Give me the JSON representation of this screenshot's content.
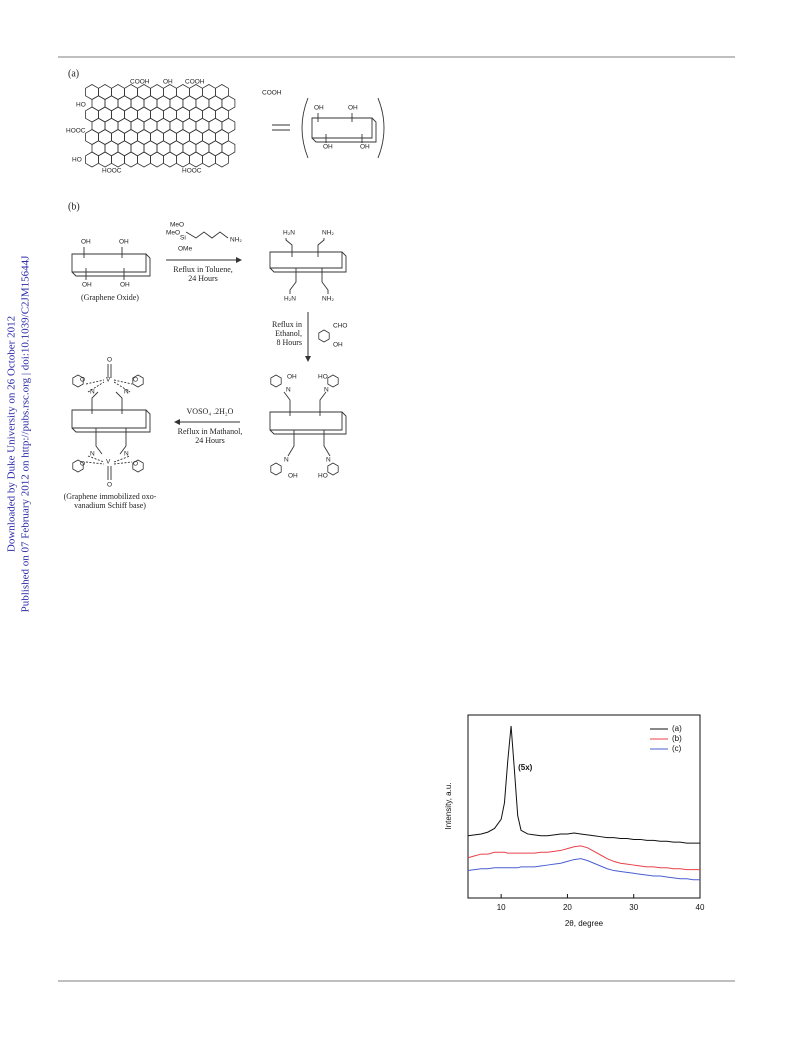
{
  "side_notes": [
    "Downloaded by Duke University on 26 October 2012",
    "Published on 07 February 2012 on http://pubs.rsc.org | doi:10.1039/C2JM15644J"
  ],
  "scheme_a": {
    "label": "(a)",
    "groups": [
      "COOH",
      "OH",
      "COOH",
      "COOH",
      "HO",
      "HOOC",
      "HO",
      "HOOC",
      "HOOC",
      "OH",
      "OH",
      "OH",
      "OH"
    ]
  },
  "scheme_b": {
    "label": "(b)",
    "labels": [
      "OH",
      "OH",
      "OH",
      "OH",
      "(Graphene Oxide)",
      "MeO",
      "MeO",
      "Si",
      "NH₂",
      "OMe",
      "Reflux in Toluene,",
      "24 Hours",
      "H₂N",
      "NH₂",
      "H₂N",
      "NH₂",
      "Reflux in",
      "Ethanol,",
      "8 Hours",
      "CHO",
      "OH",
      "OH",
      "N",
      "HO",
      "N",
      "N",
      "N",
      "OH",
      "HO",
      "VOSO₄ .2H₂O",
      "Reflux in Mathanol,",
      "24 Hours",
      "O",
      "V",
      "N",
      "N",
      "O",
      "O",
      "V",
      "N",
      "N",
      "O",
      "O",
      "O",
      "(Graphene immobilized oxo-",
      "vanadium Schiff base)"
    ]
  },
  "chart_data": {
    "type": "line",
    "xlabel": "2θ, degree",
    "ylabel": "Intensity, a.u.",
    "annotation": "(5x)",
    "xlim": [
      5,
      40
    ],
    "xticks": [
      10,
      20,
      30,
      40
    ],
    "ylim": [
      0,
      100
    ],
    "legend": "upper right",
    "x": [
      5,
      6,
      7,
      8,
      9,
      10,
      10.5,
      11,
      11.5,
      12,
      12.5,
      13,
      14,
      15,
      16,
      17,
      18,
      19,
      20,
      21,
      22,
      23,
      24,
      25,
      26,
      27,
      28,
      29,
      30,
      31,
      32,
      33,
      34,
      35,
      36,
      37,
      38,
      39,
      40
    ],
    "series": [
      {
        "name": "(a)",
        "color": "#111111",
        "values": [
          34,
          34.5,
          35,
          36,
          38,
          43,
          52,
          75,
          94,
          70,
          45,
          37,
          35,
          34.5,
          34,
          34,
          34.5,
          35,
          35,
          35.5,
          35,
          34.5,
          34,
          33.5,
          33,
          33,
          32.5,
          32.5,
          32,
          32,
          31.5,
          31.5,
          31,
          31,
          30.5,
          30.5,
          30,
          30,
          30
        ]
      },
      {
        "name": "(b)",
        "color": "#e8414a",
        "values": [
          22,
          23,
          24,
          24,
          25,
          25,
          25,
          24.5,
          24.5,
          24.5,
          24.5,
          24.5,
          24.5,
          24.5,
          25,
          25,
          25.5,
          26,
          27,
          28,
          28.5,
          27.5,
          25.5,
          23.5,
          21.5,
          20,
          19,
          18.5,
          18,
          17.5,
          17,
          17,
          16.5,
          16.5,
          16,
          16,
          15.5,
          15.5,
          15.5
        ]
      },
      {
        "name": "(c)",
        "color": "#4a5fd0",
        "values": [
          15,
          15.5,
          16,
          16,
          16.5,
          16.5,
          16.5,
          16.5,
          16.5,
          16.5,
          16.5,
          17,
          17,
          17,
          17.5,
          18,
          18.5,
          19,
          20,
          21,
          21.5,
          20.5,
          19,
          17.5,
          16,
          15,
          14.5,
          14,
          13.5,
          13,
          12.5,
          12,
          12,
          11.5,
          11,
          10.5,
          10.5,
          10,
          10
        ]
      }
    ]
  }
}
